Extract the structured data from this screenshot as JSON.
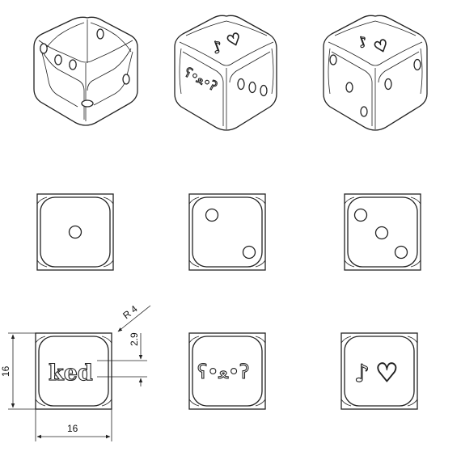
{
  "dimensions": {
    "width_value": "16",
    "height_value": "16",
    "radius_value": "R 4",
    "depth_value": "2.9"
  },
  "faces": {
    "one": {
      "pips": 1
    },
    "two": {
      "pips": 2
    },
    "three": {
      "pips": 3
    },
    "text_face": {
      "label": "ked"
    },
    "emoticon_face": {
      "label": "ʕ•ﻌ•ʔ"
    },
    "symbol_face": {
      "note": "♪",
      "heart": "♡"
    }
  },
  "iso_views": {
    "view_1": {
      "faces": [
        "three",
        "one",
        "four"
      ]
    },
    "view_2": {
      "faces": [
        "symbol",
        "emoticon",
        "three"
      ]
    },
    "view_3": {
      "faces": [
        "symbol",
        "three",
        "two"
      ]
    }
  }
}
